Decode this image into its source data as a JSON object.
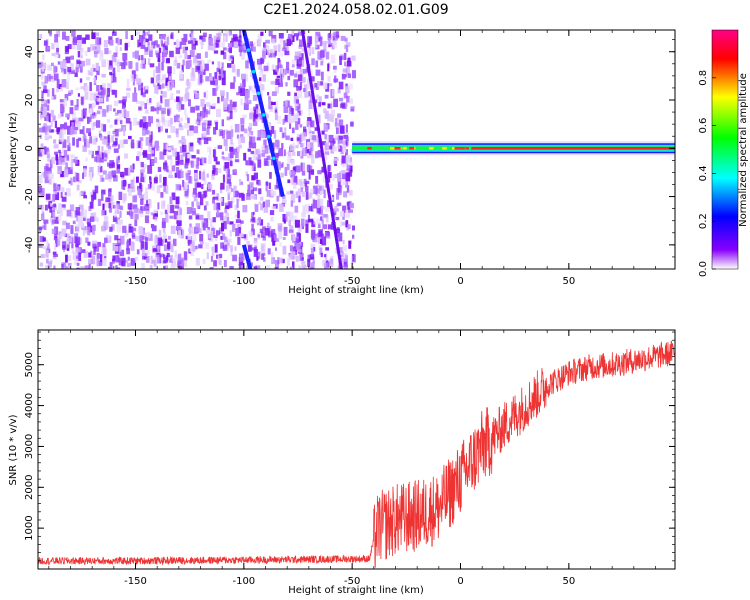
{
  "title": "C2E1.2024.058.02.01.G09",
  "chart_data": [
    {
      "type": "heatmap",
      "xlabel": "Height of straight line (km)",
      "ylabel": "Frequency (Hz)",
      "xlim": [
        -195,
        99
      ],
      "ylim": [
        -50,
        49
      ],
      "xticks": [
        -150,
        -100,
        -50,
        0,
        50
      ],
      "yticks": [
        -40,
        -20,
        0,
        20,
        40
      ],
      "colorbar": {
        "label": "Normalized spectral amplitude",
        "range": [
          0,
          1
        ],
        "ticks": [
          "0.0",
          "0.2",
          "0.4",
          "0.6",
          "0.8"
        ],
        "colormap": [
          "#ffffff",
          "#8800ff",
          "#0000ff",
          "#00ffff",
          "#00ff00",
          "#ffff00",
          "#ff0000",
          "#ff0088"
        ]
      },
      "features": {
        "noise_region_x": [
          -195,
          -50
        ],
        "noise_level": 0.1,
        "diagonal_line_1": [
          [
            -100,
            49
          ],
          [
            -82,
            -20
          ]
        ],
        "diagonal_line_2": [
          [
            -100,
            -40
          ],
          [
            -97,
            -50
          ]
        ],
        "diagonal_line_3": [
          [
            -73,
            49
          ],
          [
            -55,
            -50
          ]
        ],
        "carrier_band_x": [
          -50,
          99
        ],
        "carrier_frequency": 0,
        "carrier_amplitude": 0.8
      }
    },
    {
      "type": "line",
      "xlabel": "Height of straight line (km)",
      "ylabel": "SNR (10 * v/v)",
      "xlim": [
        -195,
        99
      ],
      "ylim": [
        0,
        5850
      ],
      "xticks": [
        -150,
        -100,
        -50,
        0,
        50
      ],
      "yticks": [
        1000,
        2000,
        3000,
        4000,
        5000
      ],
      "series_color": "#ee3333",
      "x": [
        -195,
        -150,
        -100,
        -60,
        -42,
        -40,
        -38,
        -30,
        -20,
        -10,
        0,
        5,
        10,
        15,
        20,
        30,
        40,
        50,
        60,
        70,
        80,
        90,
        99
      ],
      "values": [
        200,
        200,
        220,
        240,
        250,
        700,
        1000,
        1200,
        1300,
        1500,
        2200,
        2600,
        3000,
        3200,
        3500,
        4000,
        4500,
        4800,
        4950,
        5000,
        5100,
        5200,
        5300
      ]
    }
  ]
}
